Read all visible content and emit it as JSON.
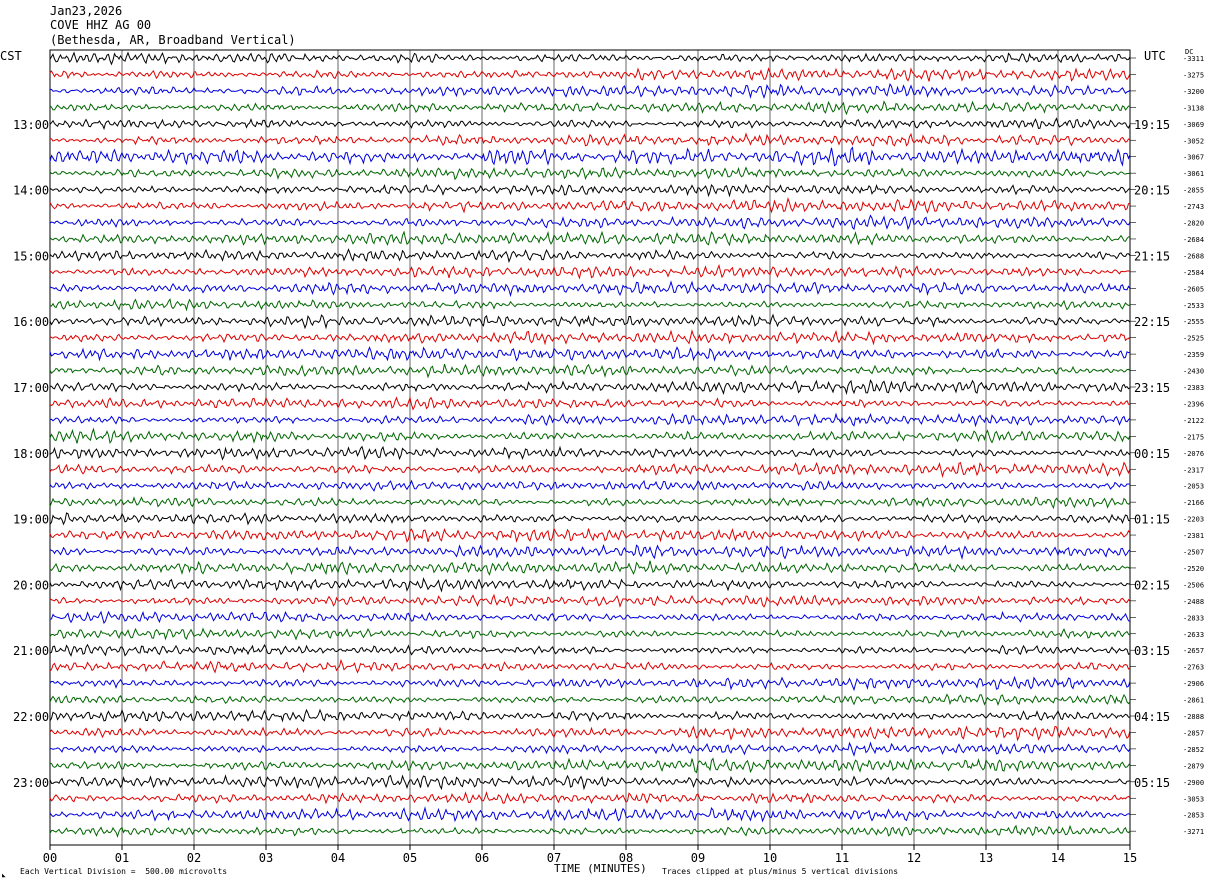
{
  "header": {
    "date": "Jan23,2026",
    "station": "COVE HHZ AG 00",
    "location": "(Bethesda, AR, Broadband Vertical)"
  },
  "timezones": {
    "left": "CST",
    "right": "UTC"
  },
  "dc_label": "DC",
  "footer": {
    "division": "Each Vertical Division =  500.00 microvolts",
    "x_title": "TIME (MINUTES)",
    "clipped": "Traces clipped at plus/minus 5 vertical divisions"
  },
  "colors": {
    "trace_cycle": [
      "#000000",
      "#dd0000",
      "#0000dd",
      "#006600"
    ],
    "grid": "#000000"
  },
  "chart_data": {
    "type": "line",
    "title": "",
    "xlabel": "TIME (MINUTES)",
    "ylabel": "",
    "x_ticks": [
      "00",
      "01",
      "02",
      "03",
      "04",
      "05",
      "06",
      "07",
      "08",
      "09",
      "10",
      "11",
      "12",
      "13",
      "14",
      "15"
    ],
    "xlim": [
      0,
      15
    ],
    "left_hour_labels": [
      "13:00",
      "14:00",
      "15:00",
      "16:00",
      "17:00",
      "18:00",
      "19:00",
      "20:00",
      "21:00",
      "22:00",
      "23:00"
    ],
    "right_hour_labels": [
      "19:15",
      "20:15",
      "21:15",
      "22:15",
      "23:15",
      "00:15",
      "01:15",
      "02:15",
      "03:15",
      "04:15",
      "05:15"
    ],
    "trace_count": 48,
    "traces_per_hour": 4,
    "grid": true,
    "dc_offsets": [
      "-3311",
      "-3275",
      "-3200",
      "-3138",
      "-3069",
      "-3052",
      "-3067",
      "-3061",
      "-2855",
      "-2743",
      "-2820",
      "-2684",
      "-2688",
      "-2584",
      "-2605",
      "-2533",
      "-2555",
      "-2525",
      "-2359",
      "-2430",
      "-2383",
      "-2396",
      "-2122",
      "-2175",
      "-2076",
      "-2317",
      "-2053",
      "-2166",
      "-2203",
      "-2381",
      "-2507",
      "-2520",
      "-2506",
      "-2488",
      "-2833",
      "-2633",
      "-2657",
      "-2763",
      "-2906",
      "-2861",
      "-2888",
      "-2857",
      "-2852",
      "-2879",
      "-2900",
      "-3053",
      "-2853",
      "-3271"
    ]
  }
}
